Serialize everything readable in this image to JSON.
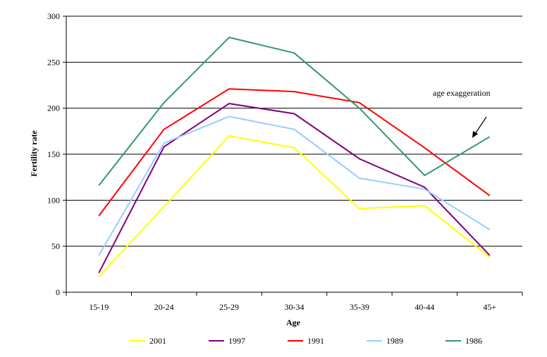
{
  "chart_data": {
    "type": "line",
    "title": "",
    "xlabel": "Age",
    "ylabel": "Fertility rate",
    "categories": [
      "15-19",
      "20-24",
      "25-29",
      "30-34",
      "35-39",
      "40-44",
      "45+"
    ],
    "ylim": [
      0,
      300
    ],
    "yticks": [
      "0",
      "50",
      "100",
      "150",
      "200",
      "250",
      "300"
    ],
    "grid": true,
    "legend_position": "bottom",
    "annotation": "age exaggeration",
    "series": [
      {
        "name": "2001",
        "color": "#ffff00",
        "values": [
          17,
          93,
          170,
          157,
          91,
          94,
          38
        ]
      },
      {
        "name": "1997",
        "color": "#800080",
        "values": [
          21,
          158,
          205,
          194,
          145,
          114,
          40
        ]
      },
      {
        "name": "1991",
        "color": "#ff0000",
        "values": [
          83,
          177,
          221,
          218,
          206,
          157,
          105
        ]
      },
      {
        "name": "1989",
        "color": "#99ccff",
        "values": [
          40,
          162,
          191,
          177,
          124,
          112,
          68
        ]
      },
      {
        "name": "1986",
        "color": "#339966",
        "values": [
          116,
          206,
          277,
          260,
          200,
          127,
          169
        ]
      }
    ]
  }
}
